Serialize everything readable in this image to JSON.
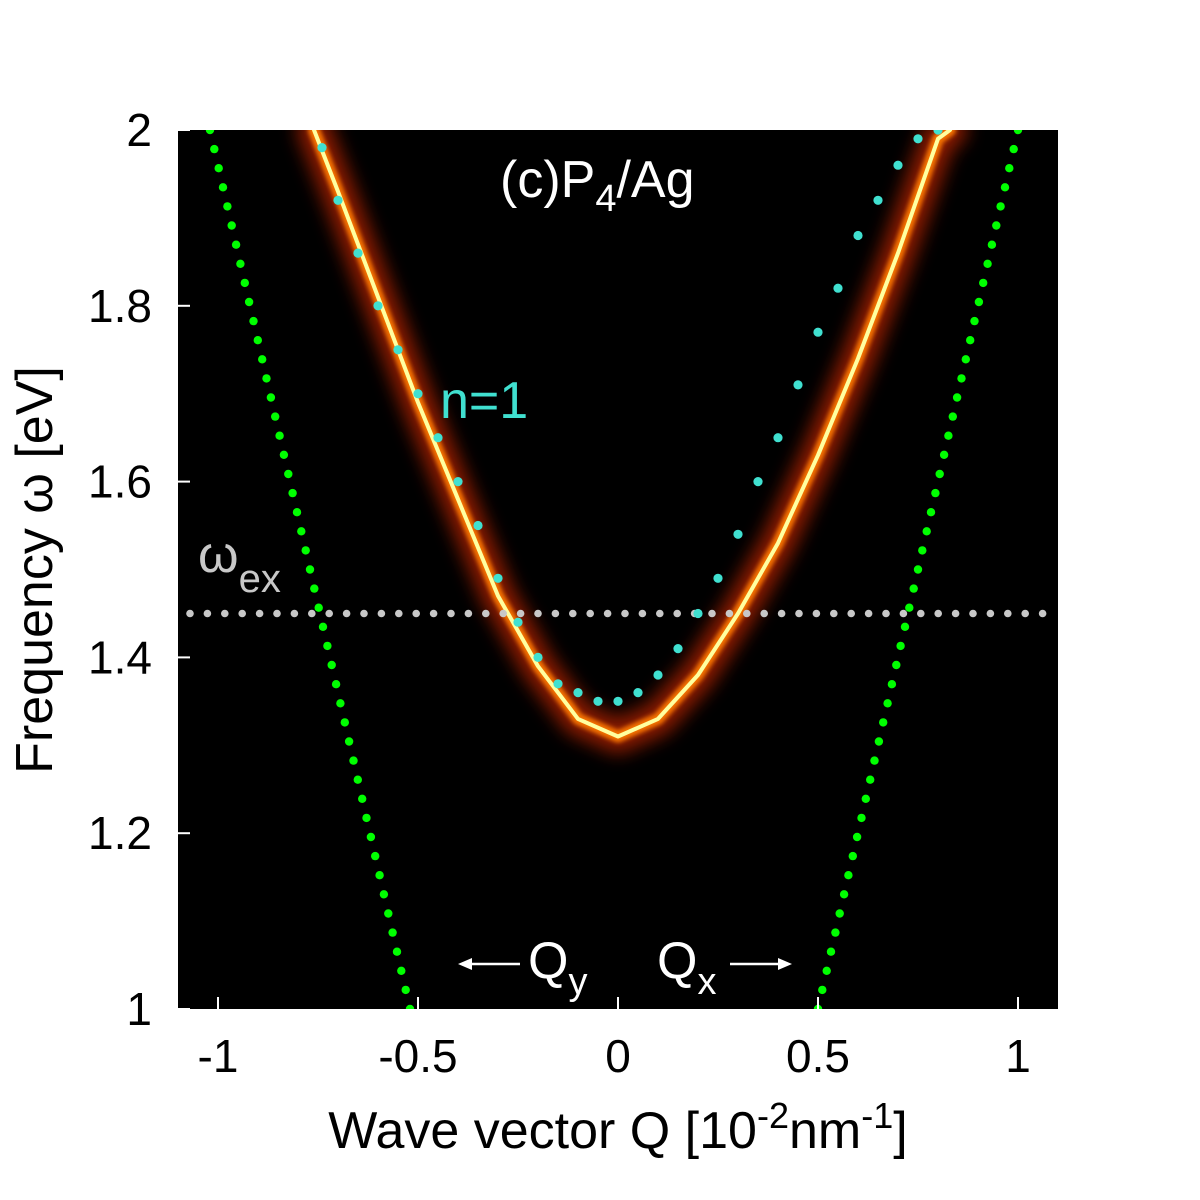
{
  "chart_data": {
    "type": "line",
    "title": "(c)P",
    "title_sub": "4",
    "title_suffix": "/Ag",
    "xlabel_prefix": "Wave vector Q [10",
    "xlabel_exp1": "-2",
    "xlabel_mid": "nm",
    "xlabel_exp2": "-1",
    "xlabel_suffix": "]",
    "ylabel": "Frequency ω [eV]",
    "xlim": [
      -1.1,
      1.1
    ],
    "ylim": [
      1.0,
      2.0
    ],
    "x_ticks": [
      -1,
      -0.5,
      0,
      0.5,
      1
    ],
    "x_tick_labels": [
      "-1",
      "-0.5",
      "0",
      "0.5",
      "1"
    ],
    "y_ticks": [
      1,
      1.2,
      1.4,
      1.6,
      1.8,
      2
    ],
    "y_tick_labels": [
      "1",
      "1.2",
      "1.4",
      "1.6",
      "1.8",
      "2"
    ],
    "background_color": "#000000",
    "heatmap_band": {
      "name": "spectral function",
      "color_peak": "#ffffa0",
      "color_mid": "#ff3000",
      "x": [
        -0.76,
        -0.7,
        -0.6,
        -0.5,
        -0.4,
        -0.3,
        -0.2,
        -0.1,
        0,
        0.1,
        0.2,
        0.3,
        0.4,
        0.5,
        0.6,
        0.7,
        0.8,
        0.83
      ],
      "y": [
        2.0,
        1.93,
        1.81,
        1.69,
        1.58,
        1.47,
        1.39,
        1.33,
        1.31,
        1.33,
        1.38,
        1.45,
        1.53,
        1.63,
        1.74,
        1.86,
        1.99,
        2.0
      ]
    },
    "series": [
      {
        "name": "n=1",
        "label": "n=1",
        "color": "#40e0d0",
        "x": [
          -0.74,
          -0.7,
          -0.65,
          -0.6,
          -0.55,
          -0.5,
          -0.45,
          -0.4,
          -0.35,
          -0.3,
          -0.25,
          -0.2,
          -0.15,
          -0.1,
          -0.05,
          0,
          0.05,
          0.1,
          0.15,
          0.2,
          0.25,
          0.3,
          0.35,
          0.4,
          0.45,
          0.5,
          0.55,
          0.6,
          0.65,
          0.7,
          0.75,
          0.8
        ],
        "y": [
          1.98,
          1.92,
          1.86,
          1.8,
          1.75,
          1.7,
          1.65,
          1.6,
          1.55,
          1.49,
          1.44,
          1.4,
          1.37,
          1.36,
          1.35,
          1.35,
          1.36,
          1.38,
          1.41,
          1.45,
          1.49,
          1.54,
          1.6,
          1.65,
          1.71,
          1.77,
          1.82,
          1.88,
          1.92,
          1.96,
          1.99,
          2.0
        ]
      },
      {
        "name": "light line Qy",
        "label": "Q",
        "label_sub": "y",
        "color": "#00ff00",
        "x": [
          -1.02,
          -0.52
        ],
        "y": [
          2.0,
          1.0
        ]
      },
      {
        "name": "light line Qx",
        "label": "Q",
        "label_sub": "x",
        "color": "#00ff00",
        "x": [
          0.5,
          1.0
        ],
        "y": [
          1.0,
          2.0
        ]
      },
      {
        "name": "exciton energy",
        "label": "ω",
        "label_sub": "ex",
        "color": "#c8c8c8",
        "x": [
          -1.07,
          1.08
        ],
        "y": [
          1.45,
          1.45
        ]
      }
    ]
  }
}
